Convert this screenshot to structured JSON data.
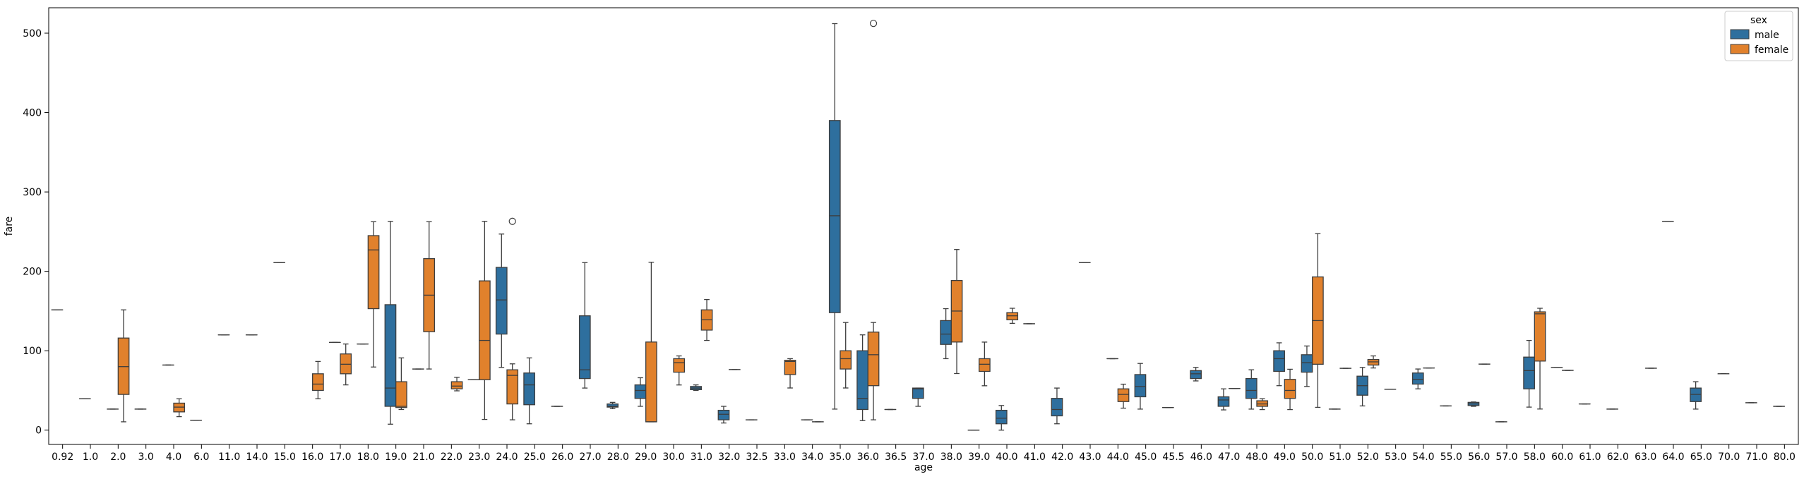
{
  "chart_data": {
    "type": "boxplot",
    "xlabel": "age",
    "ylabel": "fare",
    "ylim": [
      -18,
      532
    ],
    "yticks": [
      0,
      100,
      200,
      300,
      400,
      500
    ],
    "categories": [
      "0.92",
      "1.0",
      "2.0",
      "3.0",
      "4.0",
      "6.0",
      "11.0",
      "14.0",
      "15.0",
      "16.0",
      "17.0",
      "18.0",
      "19.0",
      "21.0",
      "22.0",
      "23.0",
      "24.0",
      "25.0",
      "26.0",
      "27.0",
      "28.0",
      "29.0",
      "30.0",
      "31.0",
      "32.0",
      "32.5",
      "33.0",
      "34.0",
      "35.0",
      "36.0",
      "36.5",
      "37.0",
      "38.0",
      "39.0",
      "40.0",
      "41.0",
      "42.0",
      "43.0",
      "44.0",
      "45.0",
      "45.5",
      "46.0",
      "47.0",
      "48.0",
      "49.0",
      "50.0",
      "51.0",
      "52.0",
      "53.0",
      "54.0",
      "55.0",
      "56.0",
      "57.0",
      "58.0",
      "60.0",
      "61.0",
      "62.0",
      "63.0",
      "64.0",
      "65.0",
      "70.0",
      "71.0",
      "80.0"
    ],
    "legend": {
      "title": "sex",
      "position": "top-right",
      "entries": [
        "male",
        "female"
      ]
    },
    "colors": {
      "male": "#2e6f9e",
      "female": "#e1812c",
      "line": "#3d3d3d"
    },
    "series": [
      {
        "name": "male",
        "boxes": [
          {
            "cat": "0.92",
            "min": 151.5,
            "q1": 151.5,
            "med": 151.5,
            "q3": 151.5,
            "max": 151.5
          },
          {
            "cat": "1.0",
            "min": 39.5,
            "q1": 39.5,
            "med": 39.5,
            "q3": 39.5,
            "max": 39.5
          },
          {
            "cat": "2.0",
            "min": 26.5,
            "q1": 26.5,
            "med": 26.5,
            "q3": 26.5,
            "max": 26.5
          },
          {
            "cat": "3.0",
            "min": 26.5,
            "q1": 26.5,
            "med": 26.5,
            "q3": 26.5,
            "max": 26.5
          },
          {
            "cat": "4.0",
            "min": 82,
            "q1": 82,
            "med": 82,
            "q3": 82,
            "max": 82
          },
          {
            "cat": "6.0",
            "min": 12.5,
            "q1": 12.5,
            "med": 12.5,
            "q3": 12.5,
            "max": 12.5
          },
          {
            "cat": "11.0",
            "min": 120,
            "q1": 120,
            "med": 120,
            "q3": 120,
            "max": 120
          },
          {
            "cat": "14.0",
            "min": 120,
            "q1": 120,
            "med": 120,
            "q3": 120,
            "max": 120
          },
          {
            "cat": "15.0",
            "min": 211,
            "q1": 211,
            "med": 211,
            "q3": 211,
            "max": 211
          },
          {
            "cat": "17.0",
            "min": 110.5,
            "q1": 110.5,
            "med": 110.5,
            "q3": 110.5,
            "max": 110.5
          },
          {
            "cat": "18.0",
            "min": 108.5,
            "q1": 108.5,
            "med": 108.5,
            "q3": 108.5,
            "max": 108.5
          },
          {
            "cat": "19.0",
            "min": 7.5,
            "q1": 30,
            "med": 53,
            "q3": 158,
            "max": 263
          },
          {
            "cat": "21.0",
            "min": 77,
            "q1": 77,
            "med": 77,
            "q3": 77,
            "max": 77
          },
          {
            "cat": "23.0",
            "min": 63.5,
            "q1": 63.5,
            "med": 63.5,
            "q3": 63.5,
            "max": 63.5
          },
          {
            "cat": "24.0",
            "min": 79,
            "q1": 121,
            "med": 164,
            "q3": 205,
            "max": 247
          },
          {
            "cat": "25.0",
            "min": 8,
            "q1": 32,
            "med": 57,
            "q3": 72,
            "max": 91
          },
          {
            "cat": "26.0",
            "min": 30,
            "q1": 30,
            "med": 30,
            "q3": 30,
            "max": 30
          },
          {
            "cat": "27.0",
            "min": 53,
            "q1": 65,
            "med": 76,
            "q3": 144,
            "max": 211
          },
          {
            "cat": "28.0",
            "min": 27,
            "q1": 29,
            "med": 30,
            "q3": 33,
            "max": 35
          },
          {
            "cat": "29.0",
            "min": 30,
            "q1": 40,
            "med": 50,
            "q3": 57,
            "max": 66
          },
          {
            "cat": "31.0",
            "min": 50,
            "q1": 51,
            "med": 53,
            "q3": 55,
            "max": 57
          },
          {
            "cat": "32.0",
            "min": 9,
            "q1": 13,
            "med": 20,
            "q3": 25,
            "max": 30
          },
          {
            "cat": "32.5",
            "min": 13,
            "q1": 13,
            "med": 13,
            "q3": 13,
            "max": 13
          },
          {
            "cat": "34.0",
            "min": 13,
            "q1": 13,
            "med": 13,
            "q3": 13,
            "max": 13
          },
          {
            "cat": "35.0",
            "min": 26.5,
            "q1": 148,
            "med": 270,
            "q3": 390,
            "max": 512
          },
          {
            "cat": "36.0",
            "min": 12,
            "q1": 26,
            "med": 40,
            "q3": 100,
            "max": 120
          },
          {
            "cat": "36.5",
            "min": 26,
            "q1": 26,
            "med": 26,
            "q3": 26,
            "max": 26
          },
          {
            "cat": "37.0",
            "min": 30,
            "q1": 40,
            "med": 52,
            "q3": 53,
            "max": 53
          },
          {
            "cat": "38.0",
            "min": 90,
            "q1": 108,
            "med": 121,
            "q3": 138,
            "max": 153
          },
          {
            "cat": "39.0",
            "min": 0,
            "q1": 0,
            "med": 0,
            "q3": 0,
            "max": 0
          },
          {
            "cat": "40.0",
            "min": 0,
            "q1": 8,
            "med": 15,
            "q3": 25,
            "max": 31
          },
          {
            "cat": "41.0",
            "min": 134,
            "q1": 134,
            "med": 134,
            "q3": 134,
            "max": 134
          },
          {
            "cat": "42.0",
            "min": 8,
            "q1": 18,
            "med": 26,
            "q3": 40,
            "max": 53
          },
          {
            "cat": "43.0",
            "min": 211,
            "q1": 211,
            "med": 211,
            "q3": 211,
            "max": 211
          },
          {
            "cat": "44.0",
            "min": 90,
            "q1": 90,
            "med": 90,
            "q3": 90,
            "max": 90
          },
          {
            "cat": "45.0",
            "min": 26.5,
            "q1": 42,
            "med": 55,
            "q3": 70,
            "max": 84
          },
          {
            "cat": "45.5",
            "min": 28.5,
            "q1": 28.5,
            "med": 28.5,
            "q3": 28.5,
            "max": 28.5
          },
          {
            "cat": "46.0",
            "min": 62,
            "q1": 65,
            "med": 71,
            "q3": 75,
            "max": 79
          },
          {
            "cat": "47.0",
            "min": 25.5,
            "q1": 30,
            "med": 38,
            "q3": 42,
            "max": 52
          },
          {
            "cat": "48.0",
            "min": 26.5,
            "q1": 40,
            "med": 50,
            "q3": 65,
            "max": 76
          },
          {
            "cat": "49.0",
            "min": 56,
            "q1": 74,
            "med": 90,
            "q3": 100,
            "max": 110
          },
          {
            "cat": "50.0",
            "min": 55,
            "q1": 73,
            "med": 85,
            "q3": 95,
            "max": 106
          },
          {
            "cat": "51.0",
            "min": 26.5,
            "q1": 26.5,
            "med": 26.5,
            "q3": 26.5,
            "max": 26.5
          },
          {
            "cat": "52.0",
            "min": 30.5,
            "q1": 44,
            "med": 56,
            "q3": 68,
            "max": 79
          },
          {
            "cat": "53.0",
            "min": 51.5,
            "q1": 51.5,
            "med": 51.5,
            "q3": 51.5,
            "max": 51.5
          },
          {
            "cat": "54.0",
            "min": 52,
            "q1": 58,
            "med": 64,
            "q3": 72,
            "max": 77
          },
          {
            "cat": "55.0",
            "min": 30.5,
            "q1": 30.5,
            "med": 30.5,
            "q3": 30.5,
            "max": 30.5
          },
          {
            "cat": "56.0",
            "min": 30,
            "q1": 31,
            "med": 33,
            "q3": 35,
            "max": 35.5
          },
          {
            "cat": "57.0",
            "min": 10.5,
            "q1": 10.5,
            "med": 10.5,
            "q3": 10.5,
            "max": 10.5
          },
          {
            "cat": "58.0",
            "min": 29,
            "q1": 52,
            "med": 75,
            "q3": 92,
            "max": 113
          },
          {
            "cat": "60.0",
            "min": 79,
            "q1": 79,
            "med": 79,
            "q3": 79,
            "max": 79
          },
          {
            "cat": "61.0",
            "min": 33,
            "q1": 33,
            "med": 33,
            "q3": 33,
            "max": 33
          },
          {
            "cat": "62.0",
            "min": 26.5,
            "q1": 26.5,
            "med": 26.5,
            "q3": 26.5,
            "max": 26.5
          },
          {
            "cat": "64.0",
            "min": 263,
            "q1": 263,
            "med": 263,
            "q3": 263,
            "max": 263
          },
          {
            "cat": "65.0",
            "min": 26.5,
            "q1": 36,
            "med": 45,
            "q3": 53,
            "max": 61
          },
          {
            "cat": "70.0",
            "min": 71,
            "q1": 71,
            "med": 71,
            "q3": 71,
            "max": 71
          },
          {
            "cat": "71.0",
            "min": 34.5,
            "q1": 34.5,
            "med": 34.5,
            "q3": 34.5,
            "max": 34.5
          },
          {
            "cat": "80.0",
            "min": 30,
            "q1": 30,
            "med": 30,
            "q3": 30,
            "max": 30
          }
        ]
      },
      {
        "name": "female",
        "boxes": [
          {
            "cat": "2.0",
            "min": 10.5,
            "q1": 45,
            "med": 80,
            "q3": 116,
            "max": 151.5
          },
          {
            "cat": "4.0",
            "min": 17,
            "q1": 23,
            "med": 29,
            "q3": 34,
            "max": 39.5
          },
          {
            "cat": "16.0",
            "min": 39.5,
            "q1": 50,
            "med": 58,
            "q3": 71,
            "max": 86.5
          },
          {
            "cat": "17.0",
            "min": 57,
            "q1": 71,
            "med": 83,
            "q3": 96,
            "max": 108.5
          },
          {
            "cat": "18.0",
            "min": 79.5,
            "q1": 153,
            "med": 227,
            "q3": 245,
            "max": 262.5
          },
          {
            "cat": "19.0",
            "min": 26,
            "q1": 28.5,
            "med": 30,
            "q3": 61,
            "max": 91
          },
          {
            "cat": "21.0",
            "min": 77,
            "q1": 124,
            "med": 170,
            "q3": 216,
            "max": 262.5
          },
          {
            "cat": "22.0",
            "min": 49.5,
            "q1": 52,
            "med": 55.5,
            "q3": 61,
            "max": 66.5
          },
          {
            "cat": "23.0",
            "min": 13.5,
            "q1": 63.5,
            "med": 113,
            "q3": 188,
            "max": 263,
            "outliers": []
          },
          {
            "cat": "24.0",
            "min": 13,
            "q1": 33,
            "med": 69,
            "q3": 76,
            "max": 83.5,
            "outliers": [
              263
            ]
          },
          {
            "cat": "29.0",
            "min": 10.5,
            "q1": 10.5,
            "med": 10.5,
            "q3": 111,
            "max": 211.5
          },
          {
            "cat": "30.0",
            "min": 56.9,
            "q1": 73,
            "med": 85,
            "q3": 90,
            "max": 93.5
          },
          {
            "cat": "31.0",
            "min": 113,
            "q1": 126,
            "med": 139,
            "q3": 151.5,
            "max": 164.5
          },
          {
            "cat": "32.0",
            "min": 76.3,
            "q1": 76.3,
            "med": 76.3,
            "q3": 76.3,
            "max": 76.3
          },
          {
            "cat": "33.0",
            "min": 53.1,
            "q1": 70,
            "med": 86.5,
            "q3": 88,
            "max": 90
          },
          {
            "cat": "34.0",
            "min": 10.5,
            "q1": 10.5,
            "med": 10.5,
            "q3": 10.5,
            "max": 10.5
          },
          {
            "cat": "35.0",
            "min": 53.1,
            "q1": 77,
            "med": 90,
            "q3": 100,
            "max": 135.6
          },
          {
            "cat": "36.0",
            "min": 13,
            "q1": 56,
            "med": 95,
            "q3": 123.5,
            "max": 135.6,
            "outliers": [
              512.3
            ]
          },
          {
            "cat": "38.0",
            "min": 71.3,
            "q1": 111,
            "med": 150,
            "q3": 188.5,
            "max": 227.5
          },
          {
            "cat": "39.0",
            "min": 55.9,
            "q1": 74,
            "med": 83,
            "q3": 90,
            "max": 110.9
          },
          {
            "cat": "40.0",
            "min": 134.5,
            "q1": 139,
            "med": 144,
            "q3": 148,
            "max": 153.5
          },
          {
            "cat": "44.0",
            "min": 27.7,
            "q1": 36,
            "med": 45,
            "q3": 52,
            "max": 57.9
          },
          {
            "cat": "47.0",
            "min": 52.5,
            "q1": 52.5,
            "med": 52.5,
            "q3": 52.5,
            "max": 52.5
          },
          {
            "cat": "48.0",
            "min": 25.9,
            "q1": 30,
            "med": 33,
            "q3": 37,
            "max": 39.6
          },
          {
            "cat": "49.0",
            "min": 25.9,
            "q1": 40,
            "med": 50,
            "q3": 64,
            "max": 76.7
          },
          {
            "cat": "50.0",
            "min": 28.7,
            "q1": 83,
            "med": 138,
            "q3": 193,
            "max": 247.5
          },
          {
            "cat": "51.0",
            "min": 77.9,
            "q1": 77.9,
            "med": 77.9,
            "q3": 77.9,
            "max": 77.9
          },
          {
            "cat": "52.0",
            "min": 78.3,
            "q1": 82,
            "med": 86,
            "q3": 89,
            "max": 93.5
          },
          {
            "cat": "54.0",
            "min": 78.3,
            "q1": 78.3,
            "med": 78.3,
            "q3": 78.3,
            "max": 78.3
          },
          {
            "cat": "56.0",
            "min": 83.2,
            "q1": 83.2,
            "med": 83.2,
            "q3": 83.2,
            "max": 83.2
          },
          {
            "cat": "58.0",
            "min": 26.6,
            "q1": 87,
            "med": 146.5,
            "q3": 149,
            "max": 153.5
          },
          {
            "cat": "60.0",
            "min": 75.3,
            "q1": 75.3,
            "med": 75.3,
            "q3": 75.3,
            "max": 75.3
          },
          {
            "cat": "63.0",
            "min": 78,
            "q1": 78,
            "med": 78,
            "q3": 78,
            "max": 78
          }
        ]
      }
    ]
  }
}
